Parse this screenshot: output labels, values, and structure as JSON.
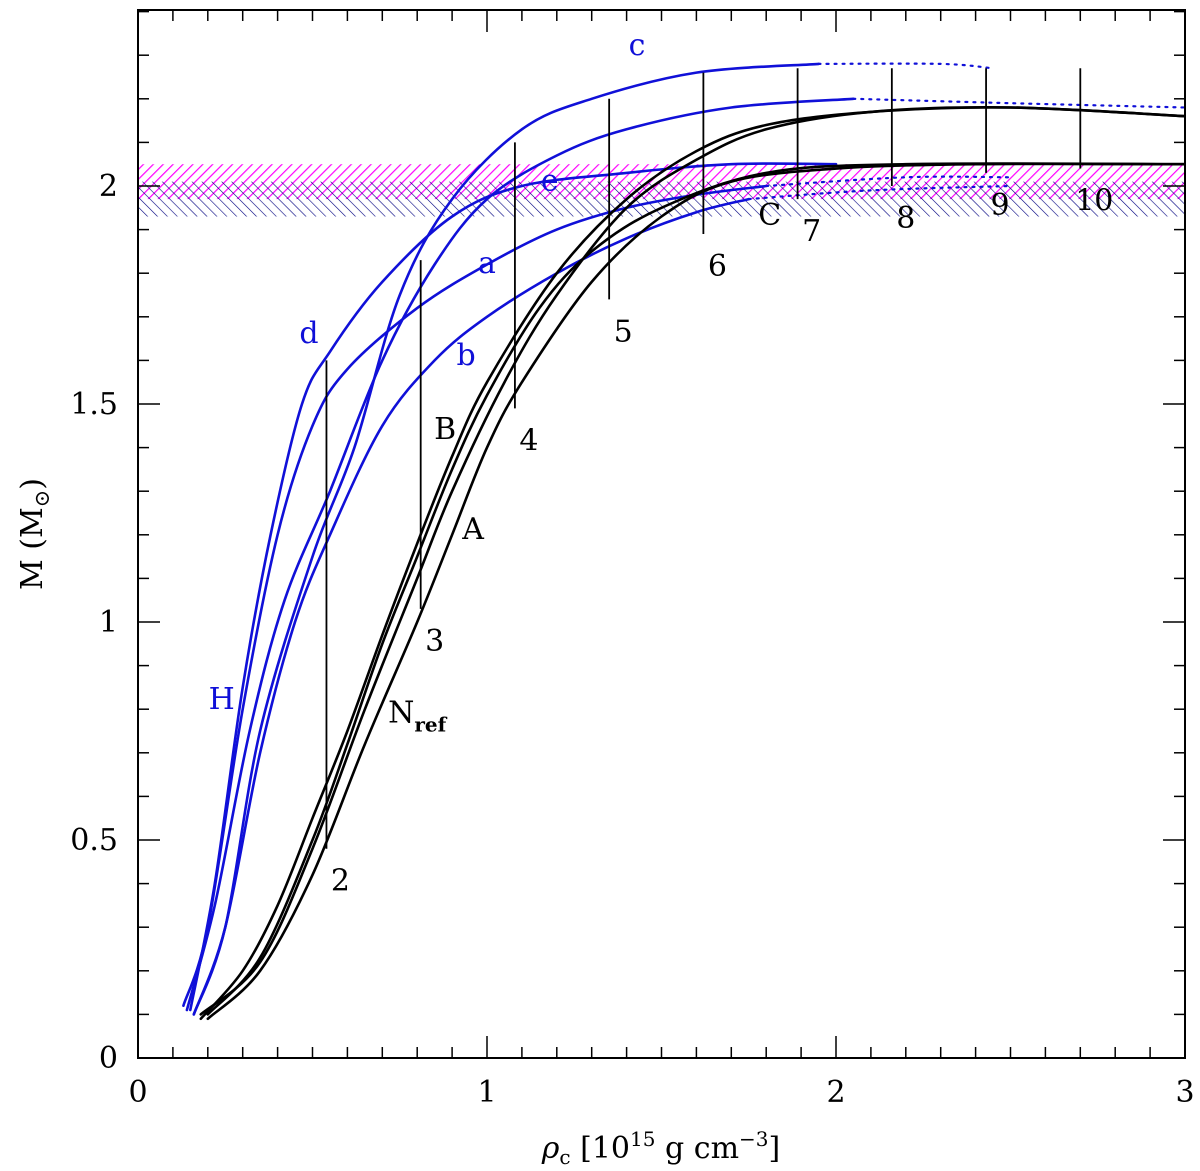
{
  "colors": {
    "blue": "#1010d8",
    "black": "#000000",
    "magenta": "#ff00ff",
    "navy": "#000080"
  },
  "chart_data": {
    "type": "line",
    "xlabel": "ρc [10¹⁵ g cm⁻³]",
    "ylabel": "M (M⊙)",
    "xlim": [
      0,
      3
    ],
    "ylim": [
      0,
      2.4
    ],
    "xticks": [
      "0",
      "1",
      "2",
      "3"
    ],
    "yticks": [
      "0",
      "0.5",
      "1",
      "1.5",
      "2"
    ],
    "bands": [
      {
        "name": "magenta-band",
        "color": "#ff00ff",
        "y": [
          1.97,
          2.05
        ]
      },
      {
        "name": "navy-band",
        "color": "#000080",
        "y": [
          1.93,
          2.01
        ]
      }
    ],
    "series": [
      {
        "name": "H",
        "color": "#1010d8",
        "solid_until": 1.8,
        "points": [
          [
            0.13,
            0.12
          ],
          [
            0.2,
            0.3
          ],
          [
            0.3,
            0.8
          ],
          [
            0.4,
            1.2
          ],
          [
            0.5,
            1.45
          ],
          [
            0.6,
            1.58
          ],
          [
            0.8,
            1.72
          ],
          [
            1.0,
            1.82
          ],
          [
            1.2,
            1.9
          ],
          [
            1.4,
            1.95
          ],
          [
            1.6,
            1.98
          ],
          [
            1.8,
            2.0
          ],
          [
            2.2,
            2.02
          ],
          [
            2.5,
            2.02
          ]
        ]
      },
      {
        "name": "d",
        "color": "#1010d8",
        "solid_until": 2.0,
        "points": [
          [
            0.15,
            0.11
          ],
          [
            0.22,
            0.4
          ],
          [
            0.3,
            0.85
          ],
          [
            0.38,
            1.2
          ],
          [
            0.47,
            1.5
          ],
          [
            0.55,
            1.62
          ],
          [
            0.7,
            1.78
          ],
          [
            0.9,
            1.93
          ],
          [
            1.1,
            2.0
          ],
          [
            1.4,
            2.03
          ],
          [
            1.7,
            2.05
          ],
          [
            2.0,
            2.05
          ]
        ]
      },
      {
        "name": "a",
        "color": "#1010d8",
        "solid_until": 2.05,
        "points": [
          [
            0.14,
            0.11
          ],
          [
            0.22,
            0.35
          ],
          [
            0.32,
            0.75
          ],
          [
            0.42,
            1.05
          ],
          [
            0.55,
            1.3
          ],
          [
            0.7,
            1.6
          ],
          [
            0.85,
            1.82
          ],
          [
            1.0,
            1.97
          ],
          [
            1.2,
            2.07
          ],
          [
            1.4,
            2.13
          ],
          [
            1.7,
            2.18
          ],
          [
            2.05,
            2.2
          ],
          [
            2.5,
            2.19
          ],
          [
            3.0,
            2.18
          ]
        ]
      },
      {
        "name": "b",
        "color": "#1010d8",
        "solid_until": 1.75,
        "points": [
          [
            0.16,
            0.1
          ],
          [
            0.25,
            0.3
          ],
          [
            0.35,
            0.7
          ],
          [
            0.45,
            1.0
          ],
          [
            0.55,
            1.2
          ],
          [
            0.7,
            1.45
          ],
          [
            0.85,
            1.6
          ],
          [
            1.0,
            1.7
          ],
          [
            1.2,
            1.8
          ],
          [
            1.4,
            1.88
          ],
          [
            1.6,
            1.94
          ],
          [
            1.75,
            1.97
          ],
          [
            2.1,
            1.99
          ],
          [
            2.5,
            2.0
          ]
        ]
      },
      {
        "name": "c",
        "color": "#1010d8",
        "solid_until": 1.95,
        "points": [
          [
            0.16,
            0.1
          ],
          [
            0.25,
            0.3
          ],
          [
            0.35,
            0.75
          ],
          [
            0.5,
            1.15
          ],
          [
            0.62,
            1.4
          ],
          [
            0.75,
            1.75
          ],
          [
            0.9,
            1.97
          ],
          [
            1.1,
            2.13
          ],
          [
            1.3,
            2.2
          ],
          [
            1.6,
            2.26
          ],
          [
            1.95,
            2.28
          ],
          [
            2.3,
            2.28
          ],
          [
            2.45,
            2.27
          ]
        ]
      },
      {
        "name": "Nref",
        "color": "#000000",
        "solid_until": 3.0,
        "points": [
          [
            0.18,
            0.09
          ],
          [
            0.3,
            0.2
          ],
          [
            0.4,
            0.35
          ],
          [
            0.5,
            0.55
          ],
          [
            0.6,
            0.75
          ],
          [
            0.7,
            0.97
          ],
          [
            0.8,
            1.18
          ],
          [
            0.9,
            1.38
          ],
          [
            1.0,
            1.55
          ],
          [
            1.2,
            1.8
          ],
          [
            1.4,
            1.97
          ],
          [
            1.6,
            2.08
          ],
          [
            1.8,
            2.14
          ],
          [
            2.1,
            2.17
          ],
          [
            2.5,
            2.18
          ],
          [
            3.0,
            2.16
          ]
        ]
      },
      {
        "name": "A",
        "color": "#000000",
        "solid_until": 3.0,
        "points": [
          [
            0.2,
            0.09
          ],
          [
            0.35,
            0.2
          ],
          [
            0.5,
            0.42
          ],
          [
            0.65,
            0.72
          ],
          [
            0.8,
            1.0
          ],
          [
            0.9,
            1.2
          ],
          [
            1.0,
            1.4
          ],
          [
            1.1,
            1.55
          ],
          [
            1.3,
            1.78
          ],
          [
            1.5,
            1.93
          ],
          [
            1.7,
            2.01
          ],
          [
            2.0,
            2.04
          ],
          [
            2.4,
            2.05
          ],
          [
            3.0,
            2.05
          ]
        ]
      },
      {
        "name": "B",
        "color": "#000000",
        "solid_until": 3.0,
        "points": [
          [
            0.2,
            0.1
          ],
          [
            0.35,
            0.23
          ],
          [
            0.5,
            0.5
          ],
          [
            0.6,
            0.72
          ],
          [
            0.7,
            0.95
          ],
          [
            0.8,
            1.15
          ],
          [
            0.9,
            1.35
          ],
          [
            1.0,
            1.52
          ],
          [
            1.15,
            1.72
          ],
          [
            1.3,
            1.85
          ],
          [
            1.5,
            1.95
          ],
          [
            1.8,
            2.03
          ],
          [
            2.2,
            2.05
          ],
          [
            3.0,
            2.05
          ]
        ]
      },
      {
        "name": "C",
        "color": "#000000",
        "solid_until": 3.0,
        "points": [
          [
            0.18,
            0.1
          ],
          [
            0.35,
            0.22
          ],
          [
            0.5,
            0.48
          ],
          [
            0.65,
            0.8
          ],
          [
            0.8,
            1.1
          ],
          [
            0.9,
            1.3
          ],
          [
            1.05,
            1.55
          ],
          [
            1.2,
            1.75
          ],
          [
            1.4,
            1.95
          ],
          [
            1.6,
            2.06
          ],
          [
            1.8,
            2.13
          ],
          [
            2.1,
            2.17
          ],
          [
            2.5,
            2.18
          ],
          [
            3.0,
            2.16
          ]
        ]
      }
    ],
    "density_lines": [
      {
        "label": "2",
        "x": 0.54,
        "y": [
          0.48,
          1.6
        ]
      },
      {
        "label": "3",
        "x": 0.81,
        "y": [
          1.03,
          1.83
        ]
      },
      {
        "label": "4",
        "x": 1.08,
        "y": [
          1.49,
          2.1
        ]
      },
      {
        "label": "5",
        "x": 1.35,
        "y": [
          1.74,
          2.2
        ]
      },
      {
        "label": "6",
        "x": 1.62,
        "y": [
          1.89,
          2.26
        ]
      },
      {
        "label": "7",
        "x": 1.89,
        "y": [
          1.97,
          2.27
        ]
      },
      {
        "label": "8",
        "x": 2.16,
        "y": [
          2.0,
          2.27
        ]
      },
      {
        "label": "9",
        "x": 2.43,
        "y": [
          2.03,
          2.27
        ]
      },
      {
        "label": "10",
        "x": 2.7,
        "y": [
          2.04,
          2.27
        ]
      }
    ],
    "curve_labels": [
      {
        "text": "H",
        "x": 0.24,
        "y": 0.8,
        "color": "#1010d8"
      },
      {
        "text": "d",
        "x": 0.49,
        "y": 1.64,
        "color": "#1010d8"
      },
      {
        "text": "a",
        "x": 1.0,
        "y": 1.8,
        "color": "#1010d8"
      },
      {
        "text": "b",
        "x": 0.94,
        "y": 1.59,
        "color": "#1010d8"
      },
      {
        "text": "c",
        "x": 1.43,
        "y": 2.3,
        "color": "#1010d8"
      },
      {
        "text": "e",
        "x": 1.18,
        "y": 1.99,
        "color": "#1010d8"
      },
      {
        "text": "B",
        "x": 0.88,
        "y": 1.42,
        "color": "#000000"
      },
      {
        "text": "A",
        "x": 0.96,
        "y": 1.19,
        "color": "#000000"
      },
      {
        "text": "C",
        "x": 1.81,
        "y": 1.91,
        "color": "#000000"
      },
      {
        "text": "N",
        "x": 0.8,
        "y": 0.77,
        "color": "#000000",
        "sub": "ref"
      }
    ]
  }
}
